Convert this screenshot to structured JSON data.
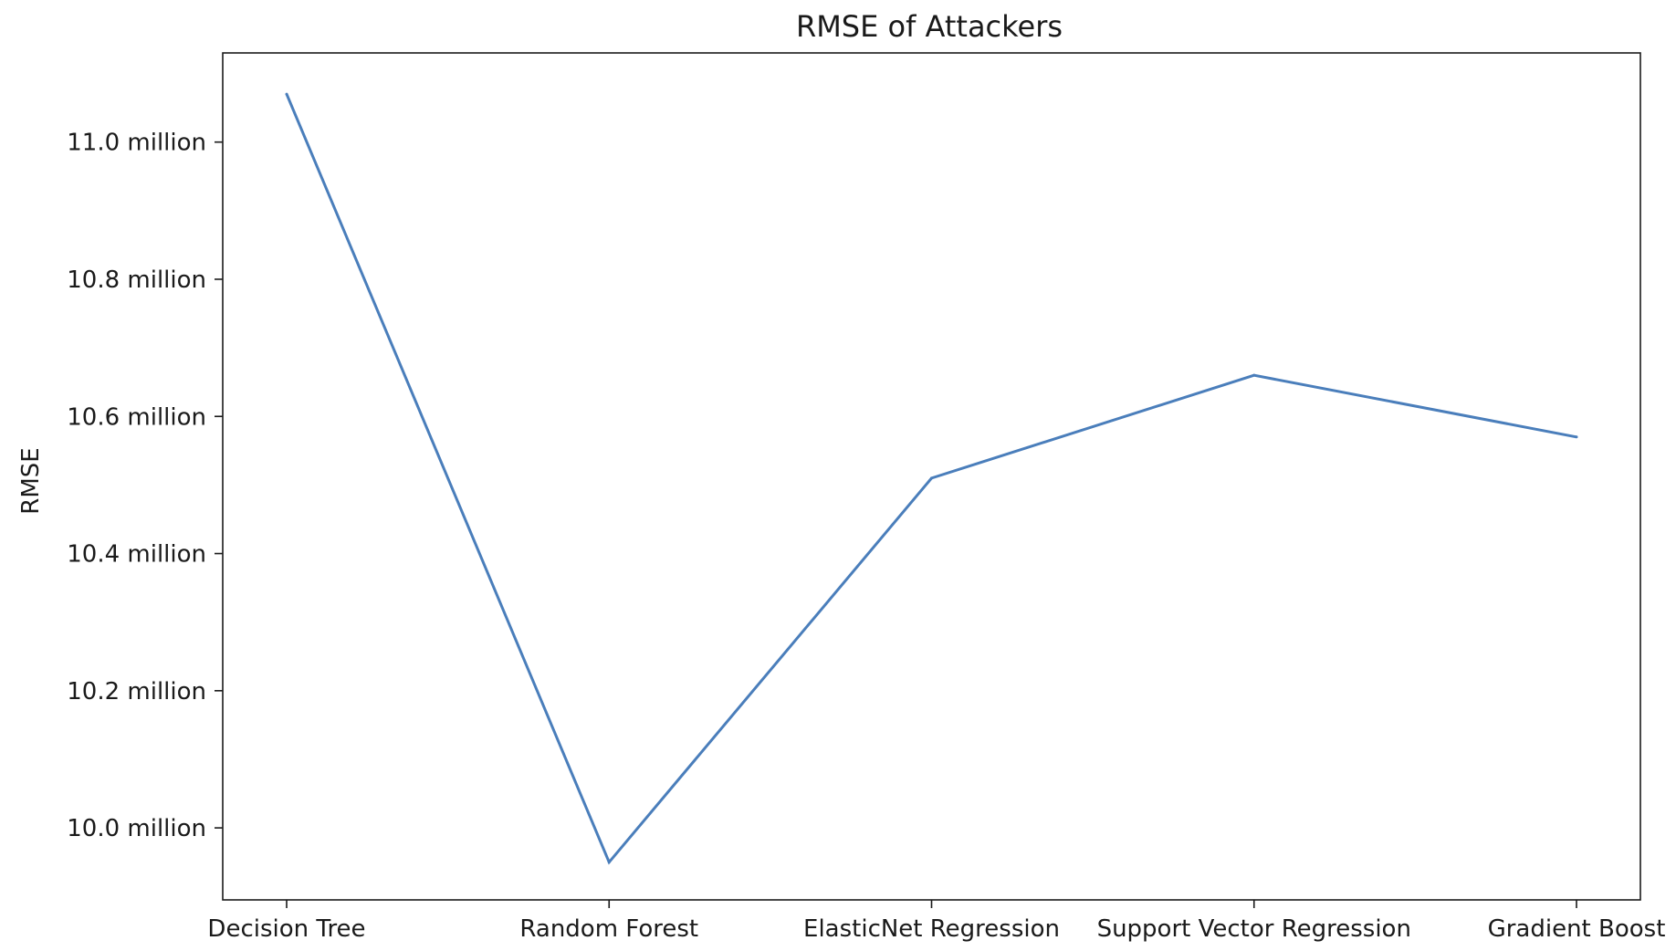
{
  "chart_data": {
    "type": "line",
    "title": "RMSE of Attackers",
    "xlabel": "",
    "ylabel": "RMSE",
    "categories": [
      "Decision Tree",
      "Random Forest",
      "ElasticNet Regression",
      "Support Vector Regression",
      "Gradient Boost"
    ],
    "series": [
      {
        "values": [
          11.07,
          9.95,
          10.51,
          10.66,
          10.57
        ]
      }
    ],
    "y_unit": "million",
    "ylim": [
      9.895,
      11.13
    ],
    "yticks": [
      10.0,
      10.2,
      10.4,
      10.6,
      10.8,
      11.0
    ],
    "ytick_labels": [
      "10.0 million",
      "10.2 million",
      "10.4 million",
      "10.6 million",
      "10.8 million",
      "11.0 million"
    ],
    "grid": false,
    "legend": "none",
    "line_color": "#4a7ebb"
  }
}
